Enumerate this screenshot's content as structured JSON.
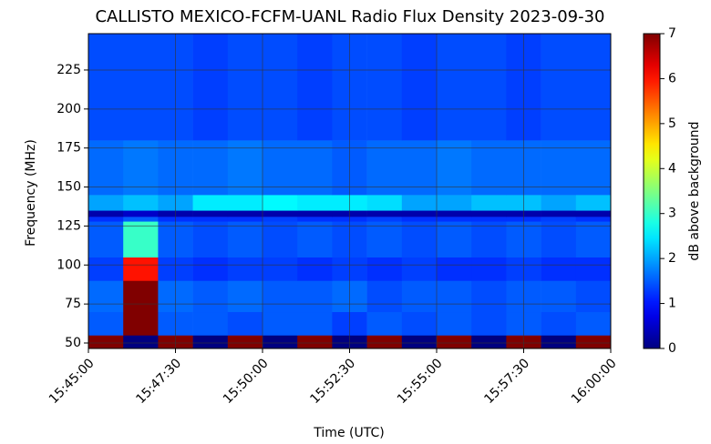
{
  "chart_data": {
    "type": "heatmap",
    "title": "CALLISTO MEXICO-FCFM-UANL Radio Flux Density 2023-09-30",
    "xlabel": "Time (UTC)",
    "ylabel": "Frequency (MHz)",
    "colormap": "jet",
    "grid": true,
    "xlim": [
      945,
      960
    ],
    "xticks": [
      {
        "value": 945,
        "label": "15:45:00"
      },
      {
        "value": 947.5,
        "label": "15:47:30"
      },
      {
        "value": 950,
        "label": "15:50:00"
      },
      {
        "value": 952.5,
        "label": "15:52:30"
      },
      {
        "value": 955,
        "label": "15:55:00"
      },
      {
        "value": 957.5,
        "label": "15:57:30"
      },
      {
        "value": 960,
        "label": "16:00:00"
      }
    ],
    "ylim": [
      46.5,
      248.3
    ],
    "yticks": [
      50,
      75,
      100,
      125,
      150,
      175,
      200,
      225
    ],
    "x_edges": [
      945,
      946,
      947,
      948,
      949,
      950,
      951,
      952,
      953,
      954,
      955,
      956,
      957,
      958,
      959,
      960
    ],
    "y_edges": [
      46.5,
      55,
      70,
      90,
      105,
      128,
      131,
      135,
      145,
      180,
      248.3
    ],
    "z": [
      [
        7,
        0,
        7,
        0,
        7,
        0,
        7,
        0,
        7,
        0,
        7,
        0,
        7,
        0,
        7
      ],
      [
        1.5,
        7,
        1.5,
        1.5,
        1.4,
        1.5,
        1.5,
        1.3,
        1.5,
        1.4,
        1.5,
        1.4,
        1.5,
        1.4,
        1.5
      ],
      [
        1.6,
        7,
        1.6,
        1.5,
        1.6,
        1.5,
        1.5,
        1.6,
        1.4,
        1.5,
        1.5,
        1.4,
        1.5,
        1.5,
        1.4
      ],
      [
        1.3,
        6,
        1.3,
        1.2,
        1.3,
        1.3,
        1.2,
        1.3,
        1.2,
        1.3,
        1.2,
        1.2,
        1.3,
        1.2,
        1.2
      ],
      [
        1.5,
        3,
        1.5,
        1.4,
        1.5,
        1.4,
        1.5,
        1.4,
        1.5,
        1.4,
        1.5,
        1.4,
        1.5,
        1.4,
        1.5
      ],
      [
        1.2,
        1.5,
        1.2,
        1.2,
        1.2,
        1.3,
        1.2,
        1.2,
        1.3,
        1.2,
        1.2,
        1.2,
        1.2,
        1.3,
        1.2
      ],
      [
        0.3,
        0.5,
        0.3,
        0.3,
        0.3,
        0.3,
        0.3,
        0.3,
        0.3,
        0.3,
        0.3,
        0.3,
        0.3,
        0.3,
        0.3
      ],
      [
        2,
        2.2,
        2,
        2.5,
        2.5,
        2.6,
        2.5,
        2.5,
        2.4,
        2,
        2,
        2.2,
        2.2,
        2,
        2.2
      ],
      [
        1.6,
        1.7,
        1.6,
        1.6,
        1.7,
        1.6,
        1.6,
        1.5,
        1.6,
        1.6,
        1.7,
        1.6,
        1.6,
        1.6,
        1.6
      ],
      [
        1.4,
        1.4,
        1.4,
        1.3,
        1.4,
        1.4,
        1.3,
        1.4,
        1.4,
        1.3,
        1.4,
        1.4,
        1.3,
        1.4,
        1.4
      ]
    ],
    "colorbar": {
      "label": "dB above background",
      "lim": [
        0,
        7
      ],
      "ticks": [
        0,
        1,
        2,
        3,
        4,
        5,
        6,
        7
      ]
    }
  }
}
